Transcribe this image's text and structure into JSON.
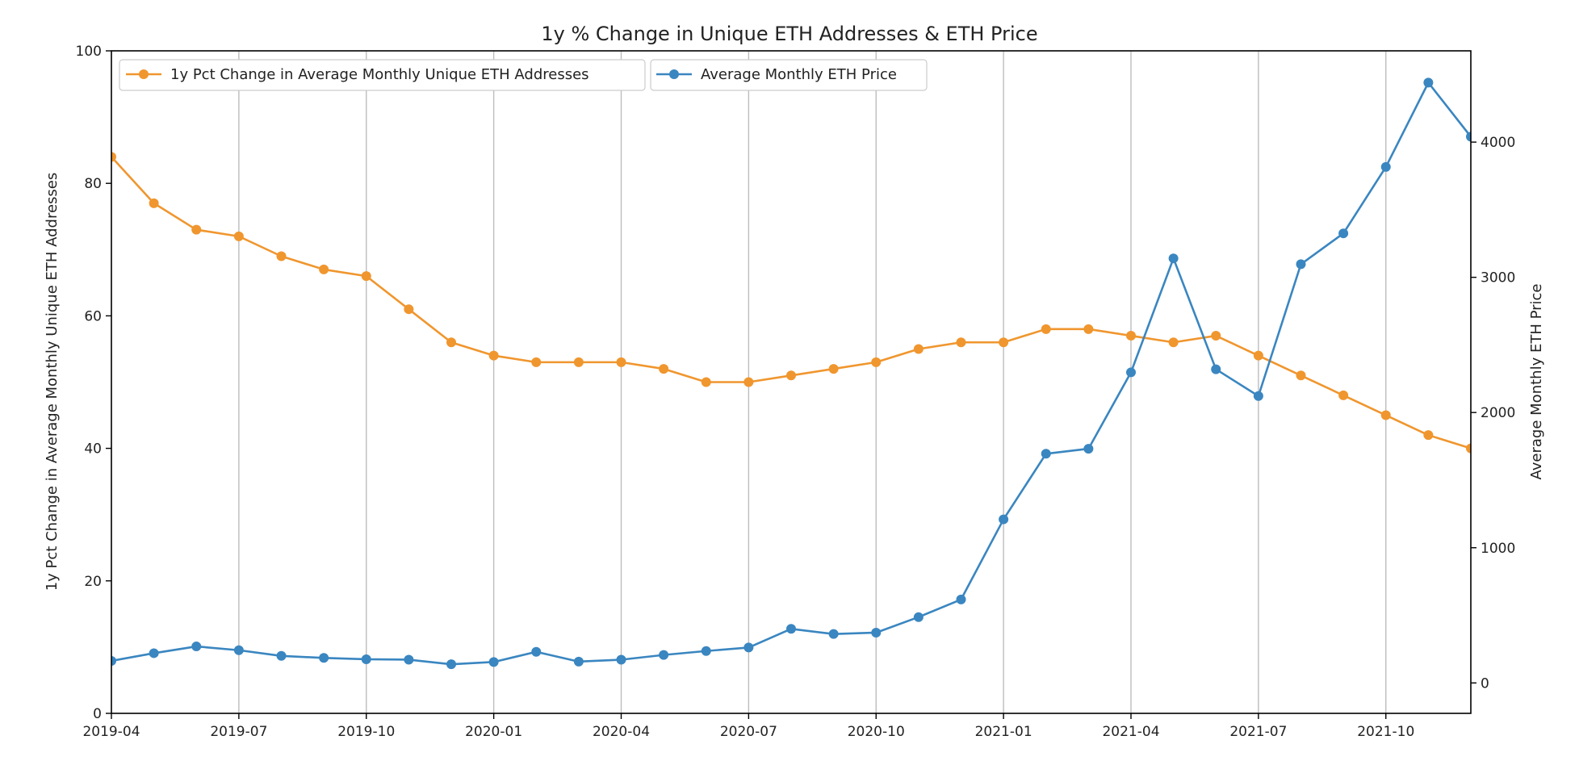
{
  "chart_data": {
    "type": "line",
    "title": "1y % Change in Unique ETH Addresses & ETH Price",
    "ylabel_left": "1y Pct Change in Average Monthly Unique ETH Addresses",
    "ylabel_right": "Average Monthly ETH Price",
    "xlabel": "",
    "grid": "vertical",
    "legend_position": "top-left",
    "x": [
      "2019-04",
      "2019-05",
      "2019-06",
      "2019-07",
      "2019-08",
      "2019-09",
      "2019-10",
      "2019-11",
      "2019-12",
      "2020-01",
      "2020-02",
      "2020-03",
      "2020-04",
      "2020-05",
      "2020-06",
      "2020-07",
      "2020-08",
      "2020-09",
      "2020-10",
      "2020-11",
      "2020-12",
      "2021-01",
      "2021-02",
      "2021-03",
      "2021-04",
      "2021-05",
      "2021-06",
      "2021-07",
      "2021-08",
      "2021-09",
      "2021-10",
      "2021-11",
      "2021-12"
    ],
    "x_ticks": [
      "2019-04",
      "2019-07",
      "2019-10",
      "2020-01",
      "2020-04",
      "2020-07",
      "2020-10",
      "2021-01",
      "2021-04",
      "2021-07",
      "2021-10"
    ],
    "ylim_left": [
      0,
      100
    ],
    "yticks_left": [
      0,
      20,
      40,
      60,
      80,
      100
    ],
    "ylim_right": [
      -225,
      4675
    ],
    "yticks_right": [
      0,
      1000,
      2000,
      3000,
      4000
    ],
    "series": [
      {
        "name": "1y Pct Change in Average Monthly Unique ETH Addresses",
        "axis": "left",
        "color": "#f0962e",
        "values": [
          84,
          77,
          73,
          72,
          69,
          67,
          66,
          61,
          56,
          54,
          53,
          53,
          53,
          52,
          50,
          50,
          51,
          52,
          53,
          55,
          56,
          56,
          58,
          58,
          57,
          56,
          57,
          54,
          51,
          48,
          45,
          42,
          40
        ]
      },
      {
        "name": "Average Monthly ETH Price",
        "axis": "right",
        "color": "#3a86c0",
        "values": [
          163,
          220,
          270,
          242,
          200,
          185,
          175,
          172,
          138,
          155,
          230,
          158,
          172,
          207,
          236,
          262,
          400,
          362,
          372,
          487,
          617,
          1210,
          1695,
          1732,
          2297,
          3140,
          2320,
          2122,
          3097,
          3325,
          3816,
          4440,
          4040
        ]
      }
    ]
  }
}
